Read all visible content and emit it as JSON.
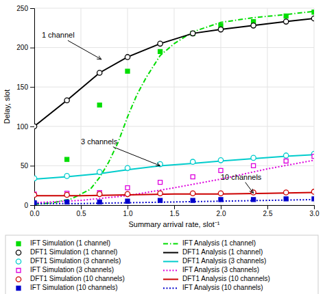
{
  "chart_data": {
    "type": "line",
    "xlabel": "Summary arrival rate, slot⁻¹",
    "ylabel": "Delay, slot",
    "xlim": [
      0,
      3.0
    ],
    "ylim": [
      0,
      250
    ],
    "xticks": [
      {
        "value": 0,
        "label": "0.0"
      },
      {
        "value": 0.5,
        "label": "0.5"
      },
      {
        "value": 1.0,
        "label": "1.0"
      },
      {
        "value": 1.5,
        "label": "1.5"
      },
      {
        "value": 2.0,
        "label": "2.0"
      },
      {
        "value": 2.5,
        "label": "2.5"
      },
      {
        "value": 3.0,
        "label": "3.0"
      }
    ],
    "yticks": [
      0,
      50,
      100,
      150,
      200,
      250
    ],
    "grid": true,
    "legend": "bottom",
    "series": [
      {
        "name": "IFT Simulation (1 channel)",
        "type": "scatter",
        "marker": "square",
        "color": "#00dd00",
        "x": [
          0.0,
          0.35,
          0.7,
          1.0,
          1.35,
          1.7,
          2.0,
          2.35,
          2.7,
          3.0
        ],
        "values": [
          2,
          58,
          127,
          170,
          195,
          218,
          228,
          233,
          240,
          245
        ]
      },
      {
        "name": "IFT Analysis (1 channel)",
        "type": "line",
        "line_style": "dashdot",
        "color": "#00dd00",
        "x": [
          0.0,
          0.2,
          0.4,
          0.6,
          0.7,
          0.8,
          0.9,
          1.0,
          1.1,
          1.2,
          1.35,
          1.5,
          1.7,
          2.0,
          2.35,
          2.7,
          3.0
        ],
        "values": [
          1,
          3,
          8,
          20,
          35,
          55,
          80,
          112,
          140,
          162,
          190,
          205,
          220,
          232,
          238,
          242,
          246
        ]
      },
      {
        "name": "DFT1 Simulation (1 channel)",
        "type": "scatter",
        "marker": "open-circle",
        "color": "#000000",
        "x": [
          0.0,
          0.35,
          0.7,
          1.0,
          1.35,
          1.7,
          2.0,
          2.35,
          2.7,
          3.0
        ],
        "values": [
          100,
          133,
          168,
          188,
          205,
          218,
          223,
          228,
          233,
          237
        ]
      },
      {
        "name": "DFT1 Analysis (1 channel)",
        "type": "line",
        "line_style": "solid",
        "color": "#000000",
        "x": [
          0.0,
          0.35,
          0.7,
          1.0,
          1.35,
          1.7,
          2.0,
          2.35,
          2.7,
          3.0
        ],
        "values": [
          100,
          133,
          168,
          188,
          205,
          218,
          223,
          228,
          233,
          237
        ]
      },
      {
        "name": "DFT1 Simulation (3 channels)",
        "type": "scatter",
        "marker": "open-circle",
        "color": "#00cccc",
        "x": [
          0.0,
          0.35,
          0.7,
          1.0,
          1.35,
          1.7,
          2.0,
          2.35,
          2.7,
          3.0
        ],
        "values": [
          34,
          37,
          42,
          47,
          52,
          55,
          57,
          60,
          63,
          65
        ]
      },
      {
        "name": "DFT1 Analysis (3 channels)",
        "type": "line",
        "line_style": "solid",
        "color": "#00cccc",
        "x": [
          0.0,
          0.35,
          0.7,
          1.0,
          1.35,
          1.7,
          2.0,
          2.35,
          2.7,
          3.0
        ],
        "values": [
          33,
          36,
          40,
          45,
          50,
          53,
          56,
          59,
          62,
          64
        ]
      },
      {
        "name": "IFT Simulation (3 channels)",
        "type": "scatter",
        "marker": "open-square",
        "color": "#dd00dd",
        "x": [
          0.0,
          0.35,
          0.7,
          1.0,
          1.35,
          1.7,
          2.0,
          2.35,
          2.7,
          3.0
        ],
        "values": [
          14,
          15,
          16,
          22,
          29,
          36,
          44,
          50,
          56,
          62
        ]
      },
      {
        "name": "IFT Analysis (3 channels)",
        "type": "line",
        "line_style": "dotted",
        "color": "#dd00dd",
        "x": [
          0.0,
          0.5,
          1.0,
          1.5,
          2.0,
          2.5,
          3.0
        ],
        "values": [
          3,
          6,
          12,
          22,
          33,
          46,
          57
        ]
      },
      {
        "name": "DFT1 Simulation (10 channels)",
        "type": "scatter",
        "marker": "open-circle",
        "color": "#cc0000",
        "x": [
          0.0,
          0.35,
          0.7,
          1.0,
          1.35,
          1.7,
          2.0,
          2.35,
          2.7,
          3.0
        ],
        "values": [
          13,
          13,
          14,
          14,
          15,
          15,
          15,
          16,
          16,
          17
        ]
      },
      {
        "name": "DFT1 Analysis (10 channels)",
        "type": "line",
        "line_style": "solid",
        "color": "#cc0000",
        "x": [
          0.0,
          0.5,
          1.0,
          1.5,
          2.0,
          2.5,
          3.0
        ],
        "values": [
          12,
          12,
          13,
          14,
          14,
          15,
          16
        ]
      },
      {
        "name": "IFT Simulation (10 channels)",
        "type": "scatter",
        "marker": "square",
        "color": "#0000cc",
        "x": [
          0.0,
          0.35,
          0.7,
          1.0,
          1.35,
          1.7,
          2.0,
          2.35,
          2.7,
          3.0
        ],
        "values": [
          3,
          4,
          4,
          5,
          6,
          6,
          7,
          7,
          8,
          8
        ]
      },
      {
        "name": "IFT Analysis (10 channels)",
        "type": "line",
        "line_style": "dotted",
        "color": "#0000cc",
        "x": [
          0.0,
          0.5,
          1.0,
          1.5,
          2.0,
          2.5,
          3.0
        ],
        "values": [
          2,
          2,
          3,
          4,
          5,
          6,
          7
        ]
      }
    ],
    "annotations": [
      {
        "text": "1 channel",
        "xy": [
          0.72,
          185
        ],
        "xytext": [
          0.08,
          215
        ]
      },
      {
        "text": "3 channels",
        "xy": [
          1.35,
          50
        ],
        "xytext": [
          0.5,
          80
        ]
      },
      {
        "text": "10 channels",
        "xy": [
          2.35,
          15
        ],
        "xytext": [
          2.0,
          35
        ]
      }
    ]
  }
}
